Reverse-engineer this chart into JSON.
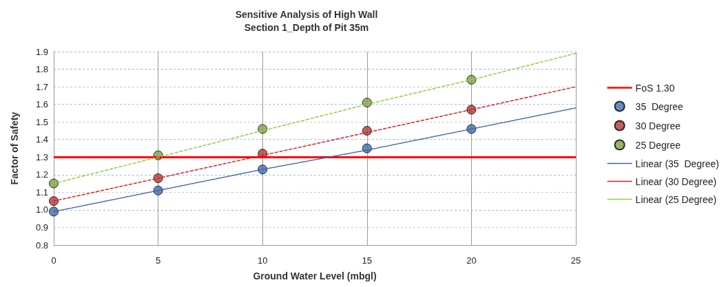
{
  "chart_data": {
    "type": "scatter",
    "title": "Sensitive Analysis of High Wall\nSection 1_Depth of Pit 35m",
    "xlabel": "Ground Water Level (mbgl)",
    "ylabel": "Factor of Safety",
    "x": [
      0,
      5,
      10,
      15,
      20,
      25
    ],
    "series": [
      {
        "name": "35  Degree",
        "color": "#3f6fae",
        "values": [
          0.99,
          1.11,
          1.23,
          1.35,
          1.46,
          null
        ],
        "marker": "circle"
      },
      {
        "name": "30 Degree",
        "color": "#b03a35",
        "values": [
          1.05,
          1.18,
          1.32,
          1.45,
          1.57,
          null
        ],
        "marker": "circle"
      },
      {
        "name": "25 Degree",
        "color": "#7ea046",
        "values": [
          1.15,
          1.31,
          1.46,
          1.61,
          1.74,
          null
        ],
        "marker": "circle"
      },
      {
        "name": "Linear (35  Degree)",
        "type": "line",
        "color": "#4060a8",
        "values": [
          0.99,
          1.11,
          1.23,
          1.34,
          1.46,
          1.58
        ],
        "marker": "none",
        "line_style": "dotted"
      },
      {
        "name": "Linear (30 Degree)",
        "type": "line",
        "color": "#e02020",
        "values": [
          1.05,
          1.18,
          1.31,
          1.44,
          1.57,
          1.7
        ],
        "marker": "none",
        "line_style": "dashed"
      },
      {
        "name": "Linear (25 Degree)",
        "type": "line",
        "color": "#90d040",
        "values": [
          1.15,
          1.3,
          1.45,
          1.6,
          1.74,
          1.89
        ],
        "marker": "none",
        "line_style": "dashed"
      }
    ],
    "xlim": [
      0,
      25
    ],
    "xticks": [
      0,
      5,
      10,
      15,
      20,
      25
    ],
    "ylim": [
      0.8,
      1.9
    ],
    "yticks": [
      {
        "value": 0.8,
        "label": "0.8"
      },
      {
        "value": 0.9,
        "label": "0.9"
      },
      {
        "value": 1.0,
        "label": "1.0"
      },
      {
        "value": 1.1,
        "label": "1.1"
      },
      {
        "value": 1.2,
        "label": "1.2"
      },
      {
        "value": 1.3,
        "label": "1.3"
      },
      {
        "value": 1.4,
        "label": "1.4"
      },
      {
        "value": 1.5,
        "label": "1.5"
      },
      {
        "value": 1.6,
        "label": "1.6"
      },
      {
        "value": 1.7,
        "label": "1.7"
      },
      {
        "value": 1.8,
        "label": "1.8"
      },
      {
        "value": 1.9,
        "label": "1.9"
      }
    ],
    "ref_lines": [
      {
        "axis": "y",
        "value": 1.3,
        "label": "FoS 1.30",
        "color": "#ff0000",
        "line_style": "solid"
      }
    ],
    "grid": true,
    "legend": "right"
  }
}
